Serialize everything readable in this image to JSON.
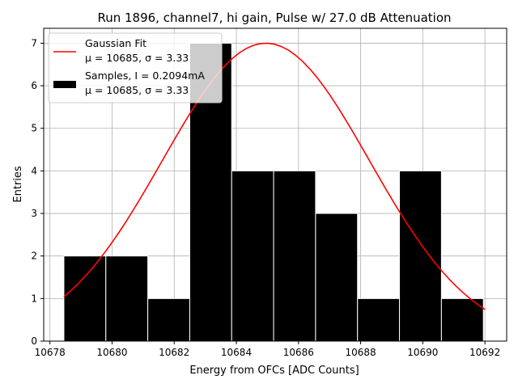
{
  "chart_data": {
    "type": "bar",
    "title": "Run 1896, channel7, hi gain, Pulse w/ 27.0 dB Attenuation",
    "xlabel": "Energy from OFCs [ADC Counts]",
    "ylabel": "Entries",
    "xlim": [
      10677.8,
      10692.7
    ],
    "ylim": [
      0,
      7.35
    ],
    "grid": true,
    "legend_position": "top-left",
    "x_ticks": [
      10678,
      10680,
      10682,
      10684,
      10686,
      10688,
      10690,
      10692
    ],
    "y_ticks": [
      0,
      1,
      2,
      3,
      4,
      5,
      6,
      7
    ],
    "histogram": {
      "name": "Samples, I = 0.2094mA",
      "stats": "μ = 10685, σ = 3.33",
      "color": "#000000",
      "bin_edges": [
        10678.45,
        10679.8,
        10681.15,
        10682.5,
        10683.85,
        10685.2,
        10686.55,
        10687.9,
        10689.25,
        10690.6,
        10691.95
      ],
      "counts": [
        2,
        2,
        1,
        7,
        4,
        4,
        3,
        1,
        4,
        1
      ]
    },
    "fit": {
      "name": "Gaussian Fit",
      "stats": "μ = 10685, σ = 3.33",
      "color": "#ff0000",
      "amplitude": 7.0,
      "mean": 10684.95,
      "sigma": 3.33,
      "x_range": [
        10678.45,
        10692.0
      ]
    }
  }
}
